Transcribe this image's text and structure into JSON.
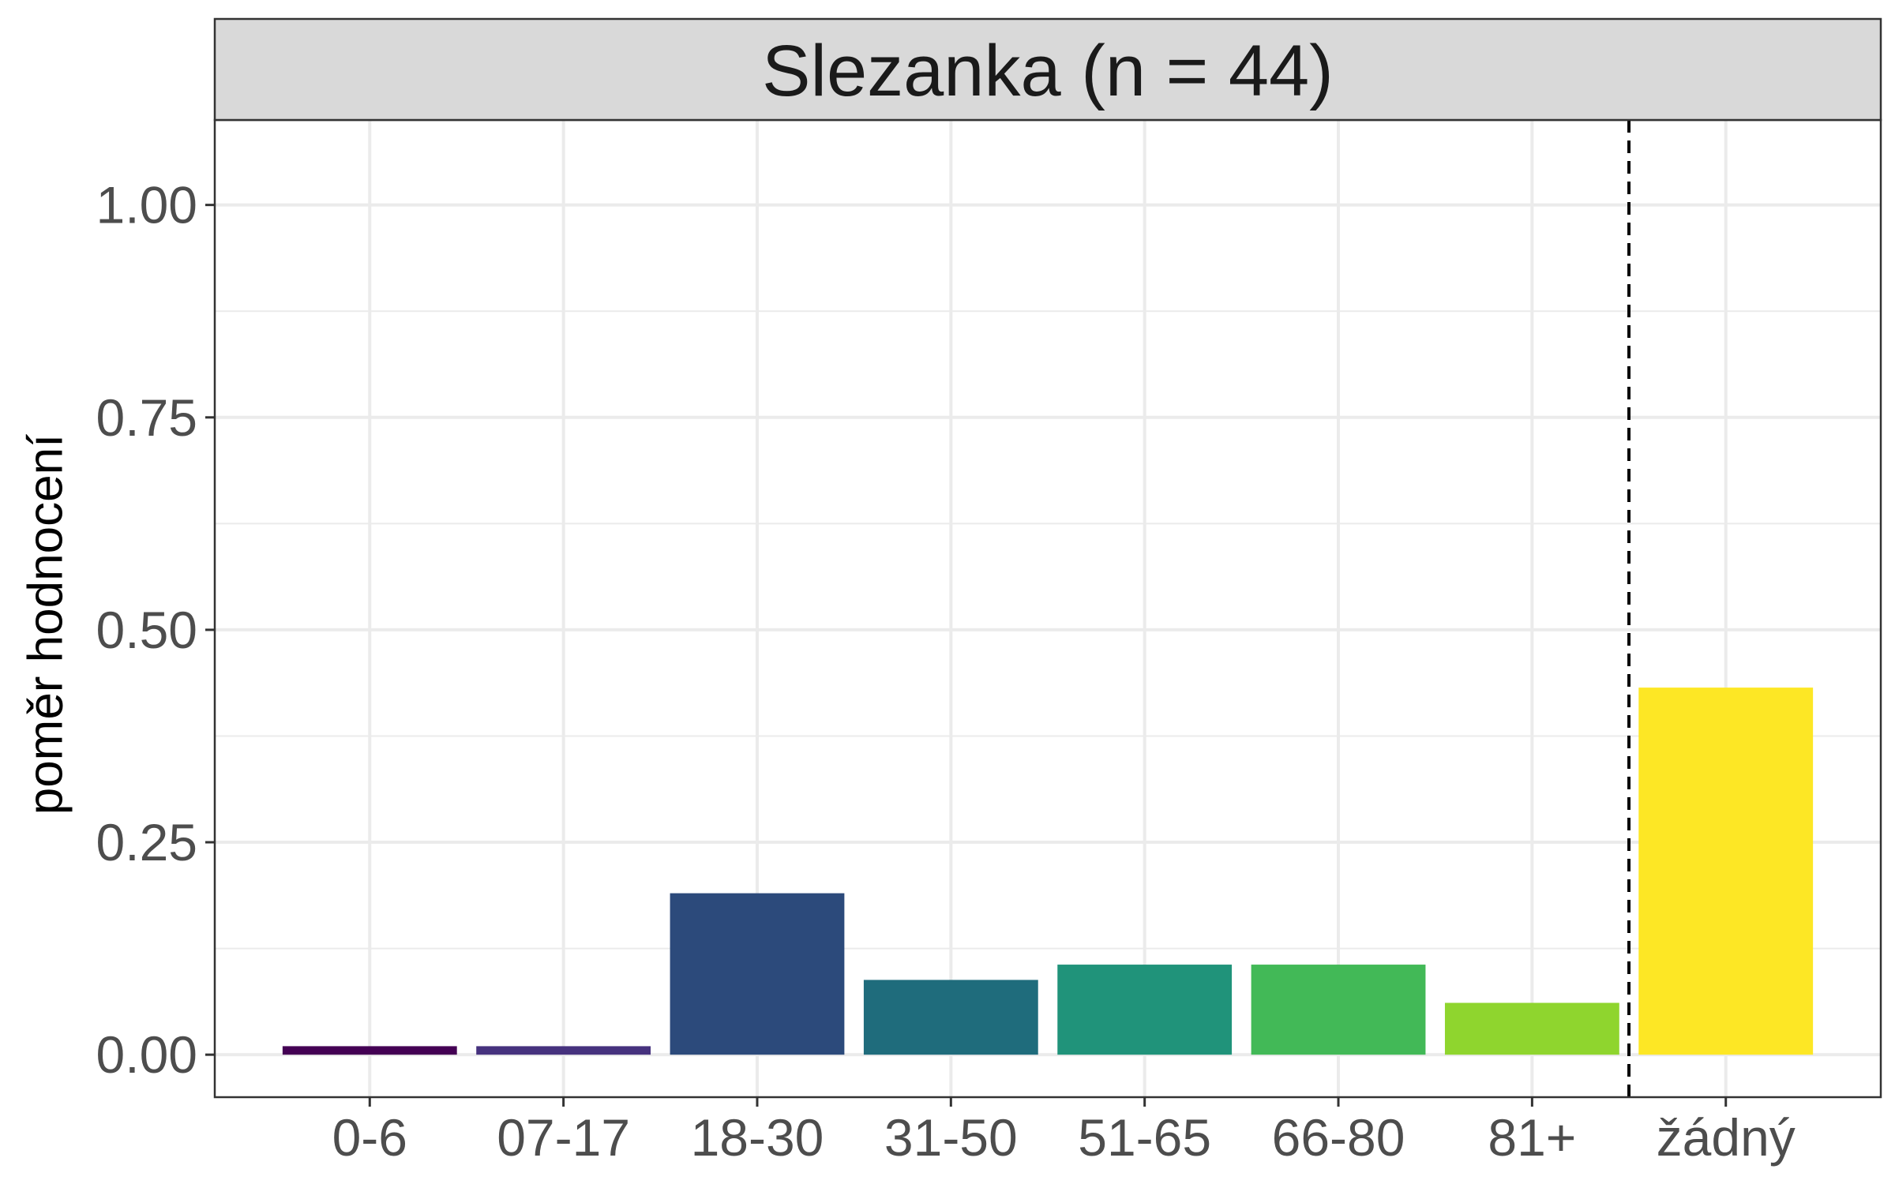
{
  "chart_data": {
    "type": "bar",
    "title": "Slezanka (n = 44)",
    "xlabel": "",
    "ylabel": "poměr hodnocení",
    "categories": [
      "0-6",
      "07-17",
      "18-30",
      "31-50",
      "51-65",
      "66-80",
      "81+",
      "žádný"
    ],
    "values": [
      0.01,
      0.01,
      0.19,
      0.088,
      0.106,
      0.106,
      0.061,
      0.432
    ],
    "colors": [
      "#440154",
      "#46327E",
      "#2C4A7B",
      "#1F6C7C",
      "#20937A",
      "#42B957",
      "#8FD52E",
      "#FDE725"
    ],
    "ylim": [
      -0.05,
      1.1
    ],
    "yticks": [
      0,
      0.25,
      0.5,
      0.75,
      1
    ],
    "ytick_labels": [
      "0.00",
      "0.25",
      "0.50",
      "0.75",
      "1.00"
    ],
    "separator": {
      "style": "dashed",
      "between": [
        "81+",
        "žádný"
      ]
    },
    "grid": true,
    "legend": "none",
    "strip_background": "#D9D9D9",
    "panel_border": "#333333",
    "grid_color": "#EBEBEB"
  }
}
